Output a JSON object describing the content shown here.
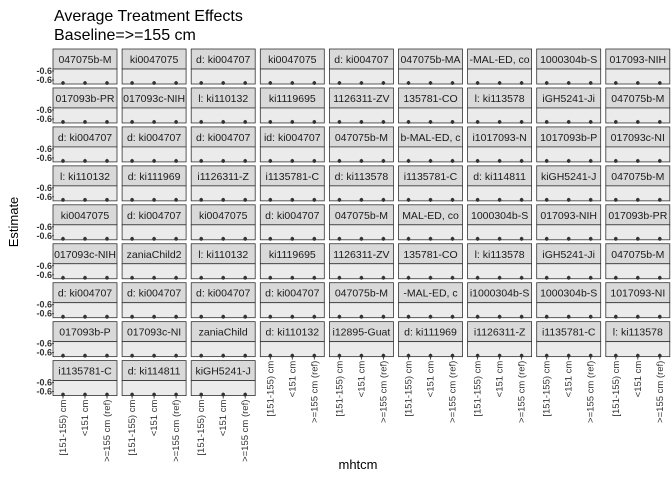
{
  "chart_data": {
    "type": "scatter",
    "title": "Average Treatment Effects",
    "subtitle": "Baseline=>=155 cm",
    "xlabel": "mhtcm",
    "ylabel": "Estimate",
    "categories": [
      "[151-155) cm",
      "<151 cm",
      ">=155 cm (ref)"
    ],
    "y_tick_label": "-0.6",
    "panels": [
      "047075b-M",
      "ki0047075",
      "d: ki004707",
      "ki0047075",
      "d: ki004707",
      "047075b-MA",
      "-MAL-ED, co",
      "1000304b-S",
      "017093-NIH",
      "017093b-PR",
      "017093c-NIH",
      "l: ki110132",
      "ki1119695",
      "1126311-ZV",
      "135781-CO",
      "l: ki113578",
      "iGH5241-Ji",
      "047075b-M",
      "d: ki004707",
      "d: ki004707",
      "d: ki004707",
      "id: ki004707",
      "047075b-M",
      "b-MAL-ED, c",
      "i1017093-N",
      "1017093b-P",
      "017093c-NI",
      "l: ki110132",
      "d: ki111969",
      "i1126311-Z",
      "i1135781-C",
      "d: ki113578",
      "i1135781-C",
      "d: ki114811",
      "kiGH5241-J",
      "047075b-M",
      "ki0047075",
      "d: ki004707",
      "ki0047075",
      "d: ki004707",
      "047075b-M",
      "MAL-ED, co",
      "1000304b-S",
      "017093-NIH",
      "017093b-PR",
      "017093c-NIH",
      "zaniaChild2",
      "l: ki110132",
      "ki1119695",
      "1126311-ZV",
      "135781-CO",
      "l: ki113578",
      "iGH5241-Ji",
      "047075b-M",
      "d: ki004707",
      "d: ki004707",
      "d: ki004707",
      "d: ki004707",
      "047075b-M",
      "-MAL-ED, c",
      "i1000304b-S",
      "1000304b-S",
      "1017093-NI",
      "017093b-P",
      "017093c-NI",
      "zaniaChild",
      "d: ki110132",
      "i12895-Guat",
      "d: ki111969",
      "i1126311-Z",
      "i1135781-C",
      "l: ki113578",
      "i1135781-C",
      "d: ki114811",
      "kiGH5241-J"
    ]
  }
}
